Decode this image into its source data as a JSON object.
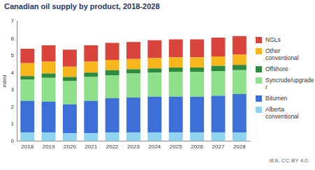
{
  "chart_data": {
    "type": "bar",
    "title": "Canadian oil supply by product, 2018-2028",
    "y_label": "mb/d",
    "annotations": [
      "IEA. CC BY 4.0."
    ],
    "categories": [
      "2018",
      "2019",
      "2020",
      "2021",
      "2022",
      "2023",
      "2024",
      "2025",
      "2026",
      "2027",
      "2028"
    ],
    "series": [
      {
        "name": "Alberta conventional",
        "color": "#8fd3f0",
        "values": [
          0.5,
          0.5,
          0.45,
          0.45,
          0.5,
          0.5,
          0.5,
          0.5,
          0.5,
          0.5,
          0.5
        ]
      },
      {
        "name": "Bitumen",
        "color": "#3d6fd8",
        "values": [
          1.85,
          1.8,
          1.7,
          1.9,
          2.0,
          2.05,
          2.1,
          2.1,
          2.1,
          2.15,
          2.25
        ]
      },
      {
        "name": "Syncrude/upgrader",
        "color": "#8fe08a",
        "values": [
          1.25,
          1.4,
          1.35,
          1.4,
          1.35,
          1.4,
          1.4,
          1.45,
          1.45,
          1.45,
          1.4
        ]
      },
      {
        "name": "Offshore",
        "color": "#2e8b3e",
        "values": [
          0.2,
          0.25,
          0.25,
          0.25,
          0.3,
          0.25,
          0.25,
          0.25,
          0.25,
          0.3,
          0.3
        ]
      },
      {
        "name": "Other conventional",
        "color": "#f6b61c",
        "values": [
          0.75,
          0.7,
          0.6,
          0.65,
          0.6,
          0.6,
          0.6,
          0.6,
          0.6,
          0.55,
          0.6
        ]
      },
      {
        "name": "NGLs",
        "color": "#d9443c",
        "values": [
          0.85,
          0.95,
          1.0,
          0.95,
          1.0,
          1.0,
          1.05,
          1.05,
          1.05,
          1.1,
          1.1
        ]
      }
    ],
    "stacked": true,
    "ylim": [
      0,
      7
    ],
    "yticks": [
      0,
      1,
      2,
      3,
      4,
      5,
      6,
      7
    ],
    "grid": false,
    "legend": "right"
  }
}
